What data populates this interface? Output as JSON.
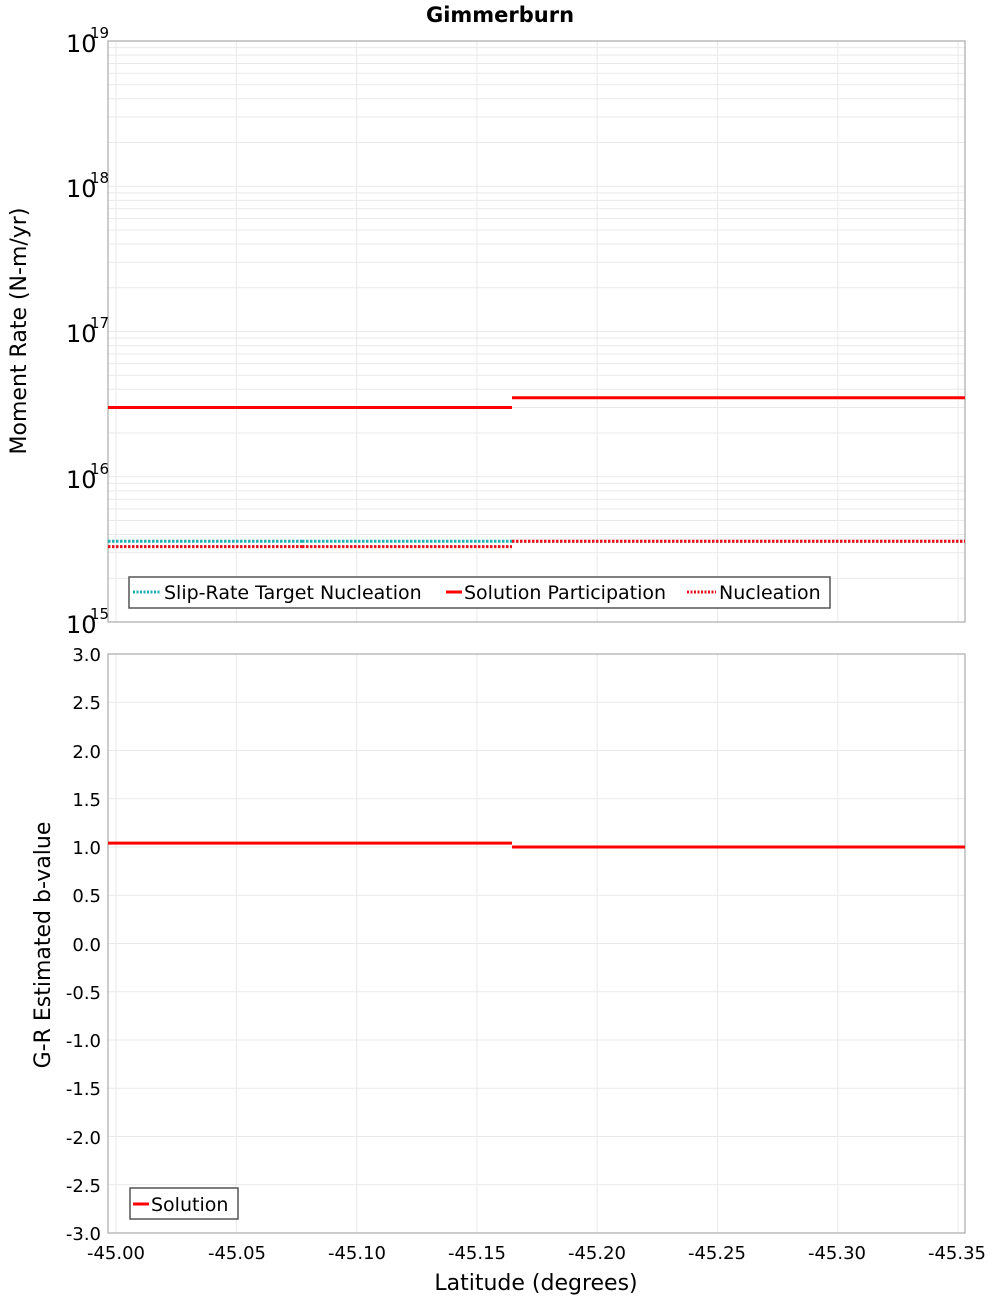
{
  "title": "Gimmerburn",
  "colors": {
    "solution": "#ff0000",
    "slip_rate_target": "#1aaeb5",
    "nucleation": "#e8101a",
    "grid": "#e9e9e9",
    "frame": "#aaaaaa"
  },
  "top_plot": {
    "ylabel": "Moment Rate (N-m/yr)",
    "yticks": [
      {
        "base": "10",
        "exp": "19"
      },
      {
        "base": "10",
        "exp": "18"
      },
      {
        "base": "10",
        "exp": "17"
      },
      {
        "base": "10",
        "exp": "16"
      },
      {
        "base": "10",
        "exp": "15"
      }
    ],
    "legend": [
      {
        "label": "Slip-Rate Target Nucleation",
        "style": "dotted",
        "color": "#1aaeb5"
      },
      {
        "label": "Solution Participation",
        "style": "solid",
        "color": "#ff0000"
      },
      {
        "label": "Nucleation",
        "style": "dotted",
        "color": "#e8101a"
      }
    ]
  },
  "bottom_plot": {
    "ylabel": "G-R Estimated b-value",
    "yticks": [
      "3.0",
      "2.5",
      "2.0",
      "1.5",
      "1.0",
      "0.5",
      "0.0",
      "-0.5",
      "-1.0",
      "-1.5",
      "-2.0",
      "-2.5",
      "-3.0"
    ],
    "legend": [
      {
        "label": "Solution",
        "style": "solid",
        "color": "#ff0000"
      }
    ]
  },
  "xaxis": {
    "label": "Latitude (degrees)",
    "ticks": [
      "-45.00",
      "-45.05",
      "-45.10",
      "-45.15",
      "-45.20",
      "-45.25",
      "-45.30",
      "-45.35"
    ]
  },
  "chart_data": [
    {
      "type": "line",
      "title": "Gimmerburn",
      "xlabel": "Latitude (degrees)",
      "ylabel": "Moment Rate (N-m/yr)",
      "yscale": "log",
      "ylim": [
        1000000000000000.0,
        1e+19
      ],
      "xlim": [
        -45.0,
        -45.35
      ],
      "grid": true,
      "legend_position": "lower left",
      "series": [
        {
          "name": "Slip-Rate Target Nucleation",
          "style": "dotted",
          "color": "#1aaeb5",
          "segments": [
            {
              "x": [
                -45.0,
                -45.0775
              ],
              "y": 3600000000000000.0
            },
            {
              "x": [
                -45.0775,
                -45.165
              ],
              "y": 3600000000000000.0
            },
            {
              "x": [
                -45.165,
                -45.35
              ],
              "y": 3600000000000000.0
            }
          ]
        },
        {
          "name": "Solution Participation",
          "style": "solid",
          "color": "#ff0000",
          "segments": [
            {
              "x": [
                -45.0,
                -45.0775
              ],
              "y": 3e+16
            },
            {
              "x": [
                -45.0775,
                -45.165
              ],
              "y": 3e+16
            },
            {
              "x": [
                -45.165,
                -45.35
              ],
              "y": 3.5e+16
            }
          ]
        },
        {
          "name": "Nucleation",
          "style": "dotted",
          "color": "#e8101a",
          "segments": [
            {
              "x": [
                -45.0,
                -45.0775
              ],
              "y": 3300000000000000.0
            },
            {
              "x": [
                -45.0775,
                -45.165
              ],
              "y": 3300000000000000.0
            },
            {
              "x": [
                -45.165,
                -45.35
              ],
              "y": 3600000000000000.0
            }
          ]
        }
      ]
    },
    {
      "type": "line",
      "xlabel": "Latitude (degrees)",
      "ylabel": "G-R Estimated b-value",
      "ylim": [
        -3.0,
        3.0
      ],
      "xlim": [
        -45.0,
        -45.35
      ],
      "grid": true,
      "legend_position": "lower left",
      "series": [
        {
          "name": "Solution",
          "style": "solid",
          "color": "#ff0000",
          "segments": [
            {
              "x": [
                -45.0,
                -45.0775
              ],
              "y": 1.04
            },
            {
              "x": [
                -45.0775,
                -45.165
              ],
              "y": 1.04
            },
            {
              "x": [
                -45.165,
                -45.26
              ],
              "y": 1.0
            },
            {
              "x": [
                -45.26,
                -45.35
              ],
              "y": 1.0
            }
          ]
        }
      ]
    }
  ]
}
